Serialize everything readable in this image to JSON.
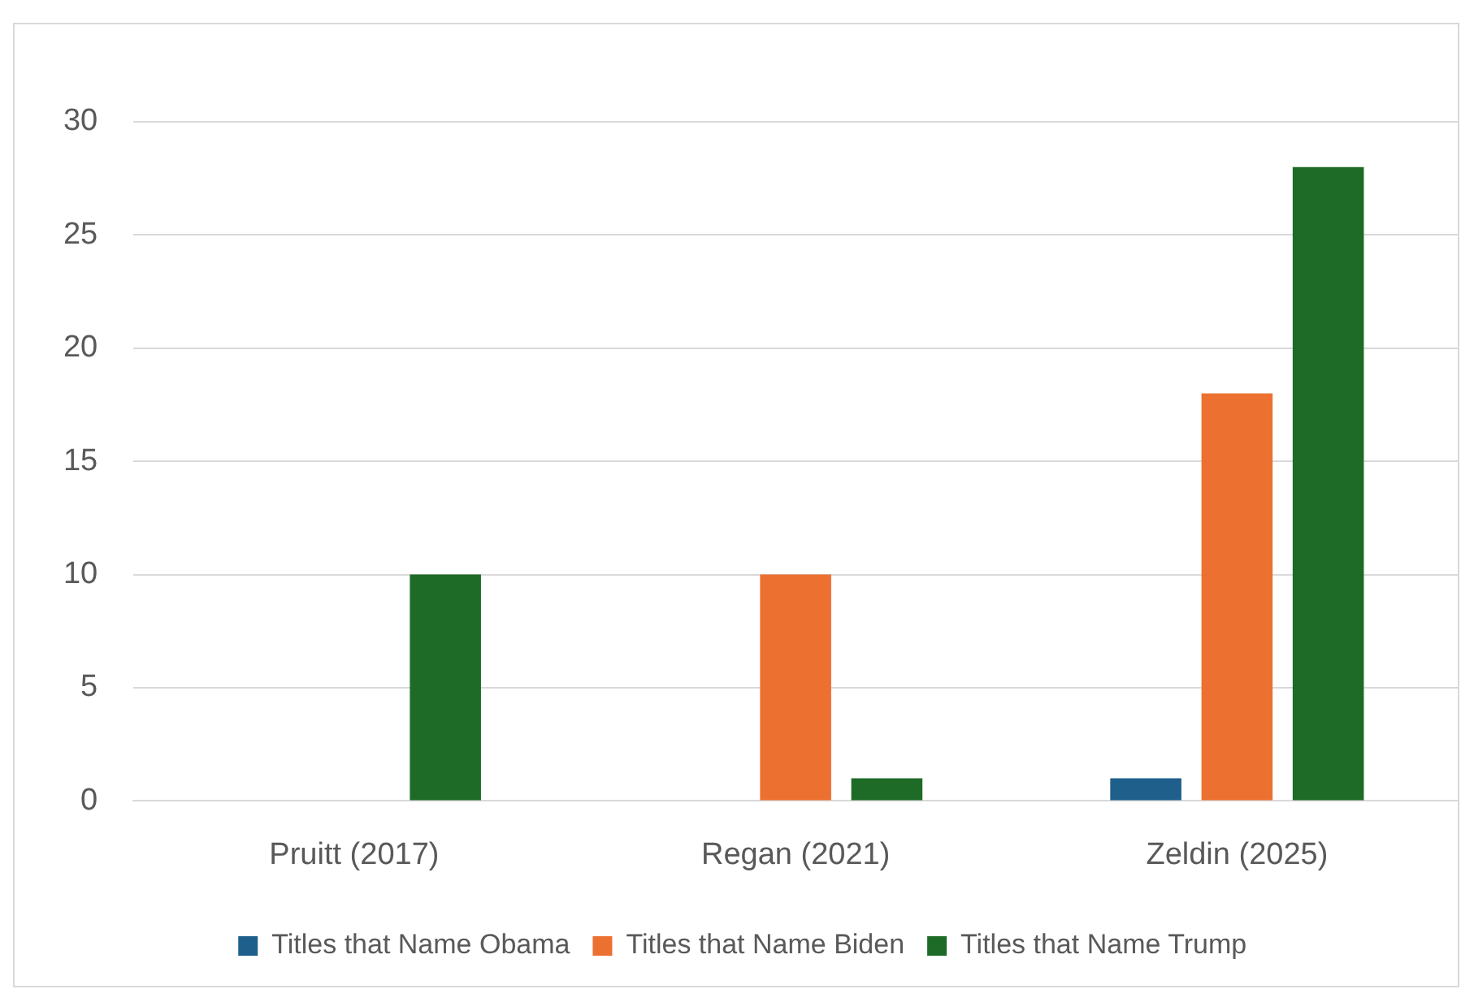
{
  "chart_data": {
    "type": "bar",
    "categories": [
      "Pruitt (2017)",
      "Regan (2021)",
      "Zeldin (2025)"
    ],
    "series": [
      {
        "name": "Titles that Name Obama",
        "color": "#1f5f8b",
        "values": [
          0,
          0,
          1
        ]
      },
      {
        "name": "Titles that Name Biden",
        "color": "#ec7131",
        "values": [
          0,
          10,
          18
        ]
      },
      {
        "name": "Titles that Name Trump",
        "color": "#1e6b28",
        "values": [
          10,
          1,
          28
        ]
      }
    ],
    "ylim": [
      0,
      30
    ],
    "yticks": [
      0,
      5,
      10,
      15,
      20,
      25,
      30
    ],
    "grid": "y",
    "legend": "bottom"
  }
}
